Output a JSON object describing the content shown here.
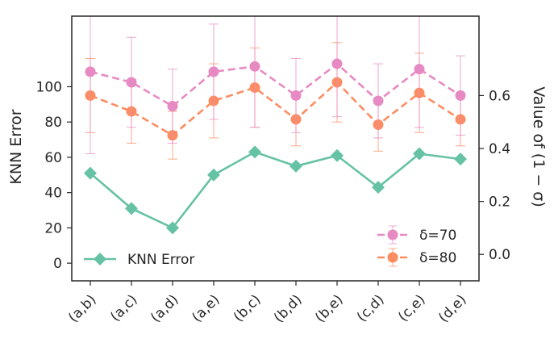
{
  "chart_data": {
    "type": "line",
    "categories": [
      "(a,b)",
      "(a,c)",
      "(a,d)",
      "(a,e)",
      "(b,c)",
      "(b,d)",
      "(b,e)",
      "(c,d)",
      "(c,e)",
      "(d,e)"
    ],
    "left_axis": {
      "label": "KNN Error",
      "ylim": [
        -10,
        140
      ],
      "ticks": [
        0,
        20,
        40,
        60,
        80,
        100
      ],
      "tick_labels": [
        "0",
        "20",
        "40",
        "60",
        "80",
        "100"
      ]
    },
    "right_axis": {
      "label": "Value of  (1 − σ)",
      "ylim": [
        -0.1,
        0.9
      ],
      "ticks": [
        0.0,
        0.2,
        0.4,
        0.6
      ],
      "tick_labels": [
        "0.0",
        "0.2",
        "0.4",
        "0.6"
      ]
    },
    "series": [
      {
        "name": "KNN Error",
        "axis": "left",
        "color": "#66c2a5",
        "marker": "diamond",
        "linestyle": "solid",
        "values": [
          51,
          31,
          20,
          50,
          63,
          55,
          61,
          43,
          62,
          59
        ]
      },
      {
        "name": "δ=70",
        "axis": "right",
        "color": "#e78ac3",
        "marker": "circle",
        "linestyle": "dashed",
        "values": [
          0.69,
          0.65,
          0.56,
          0.69,
          0.71,
          0.6,
          0.72,
          0.58,
          0.7,
          0.6
        ],
        "error": [
          0.31,
          0.17,
          0.14,
          0.18,
          0.23,
          0.14,
          0.2,
          0.14,
          0.22,
          0.15
        ]
      },
      {
        "name": "δ=80",
        "axis": "right",
        "color": "#fc8d62",
        "marker": "circle",
        "linestyle": "dashed",
        "values": [
          0.6,
          0.54,
          0.45,
          0.58,
          0.63,
          0.51,
          0.65,
          0.49,
          0.61,
          0.51
        ],
        "error": [
          0.14,
          0.12,
          0.09,
          0.14,
          0.15,
          0.1,
          0.15,
          0.1,
          0.15,
          0.1
        ]
      }
    ],
    "legends": [
      {
        "position": "bottom-left",
        "entries": [
          "KNN Error"
        ]
      },
      {
        "position": "bottom-right",
        "entries": [
          "δ=70",
          "δ=80"
        ]
      }
    ],
    "grid": false
  }
}
